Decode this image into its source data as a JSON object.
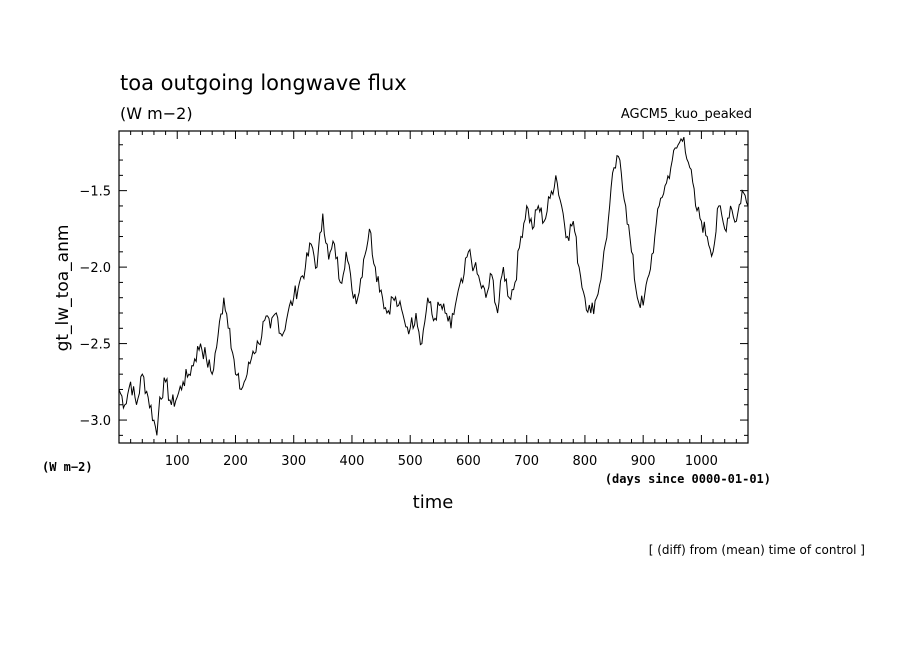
{
  "chart_data": {
    "type": "line",
    "title": "toa outgoing longwave flux",
    "subtitle": "(W m−2)",
    "run_label": "AGCM5_kuo_peaked",
    "ylabel": "gt_lw_toa_anm",
    "yunit": "(W m−2)",
    "xlabel": "time",
    "xunit": "(days since 0000-01-01)",
    "footer": "[ (diff) from (mean) time of control ]",
    "xlim": [
      0,
      1080
    ],
    "ylim": [
      -3.15,
      -1.11
    ],
    "xticks": [
      100,
      200,
      300,
      400,
      500,
      600,
      700,
      800,
      900,
      1000
    ],
    "xtick_labels": [
      "100",
      "200",
      "300",
      "400",
      "500",
      "600",
      "700",
      "800",
      "900",
      "1000"
    ],
    "yticks": [
      -3.0,
      -2.5,
      -2.0,
      -1.5
    ],
    "ytick_labels": [
      "−3.0",
      "−2.5",
      "−2.0",
      "−1.5"
    ],
    "grid": false,
    "series": [
      {
        "x": [
          0,
          10,
          20,
          30,
          40,
          50,
          60,
          65,
          70,
          80,
          90,
          100,
          110,
          120,
          130,
          140,
          150,
          160,
          170,
          180,
          190,
          200,
          210,
          220,
          230,
          240,
          250,
          260,
          270,
          280,
          290,
          300,
          310,
          320,
          330,
          340,
          350,
          360,
          370,
          380,
          390,
          400,
          410,
          420,
          430,
          440,
          450,
          460,
          470,
          480,
          490,
          500,
          510,
          520,
          530,
          540,
          550,
          560,
          570,
          580,
          590,
          600,
          610,
          620,
          630,
          640,
          650,
          660,
          670,
          680,
          690,
          700,
          710,
          720,
          730,
          740,
          750,
          760,
          770,
          780,
          790,
          800,
          810,
          820,
          830,
          840,
          850,
          860,
          870,
          880,
          890,
          900,
          910,
          920,
          930,
          940,
          950,
          960,
          970,
          980,
          990,
          1000,
          1010,
          1020,
          1030,
          1040,
          1050,
          1060,
          1070,
          1080
        ],
        "y": [
          -2.8,
          -2.9,
          -2.75,
          -2.9,
          -2.7,
          -2.85,
          -3.0,
          -3.1,
          -2.85,
          -2.75,
          -2.9,
          -2.85,
          -2.75,
          -2.7,
          -2.6,
          -2.5,
          -2.6,
          -2.7,
          -2.45,
          -2.2,
          -2.4,
          -2.7,
          -2.8,
          -2.7,
          -2.55,
          -2.5,
          -2.35,
          -2.4,
          -2.3,
          -2.45,
          -2.3,
          -2.2,
          -2.1,
          -2.0,
          -1.85,
          -2.0,
          -1.65,
          -1.95,
          -1.85,
          -2.1,
          -1.9,
          -2.15,
          -2.2,
          -1.95,
          -1.75,
          -2.0,
          -2.15,
          -2.3,
          -2.2,
          -2.25,
          -2.35,
          -2.4,
          -2.3,
          -2.5,
          -2.2,
          -2.35,
          -2.25,
          -2.3,
          -2.4,
          -2.2,
          -2.1,
          -1.9,
          -2.0,
          -2.1,
          -2.2,
          -2.05,
          -2.3,
          -2.0,
          -2.2,
          -2.1,
          -1.8,
          -1.6,
          -1.75,
          -1.6,
          -1.7,
          -1.55,
          -1.4,
          -1.6,
          -1.8,
          -1.7,
          -2.0,
          -2.2,
          -2.3,
          -2.2,
          -2.0,
          -1.7,
          -1.35,
          -1.3,
          -1.6,
          -1.9,
          -2.2,
          -2.25,
          -2.05,
          -1.8,
          -1.55,
          -1.45,
          -1.3,
          -1.2,
          -1.15,
          -1.35,
          -1.6,
          -1.7,
          -1.8,
          -1.9,
          -1.6,
          -1.75,
          -1.6,
          -1.7,
          -1.5,
          -1.6
        ]
      }
    ]
  }
}
